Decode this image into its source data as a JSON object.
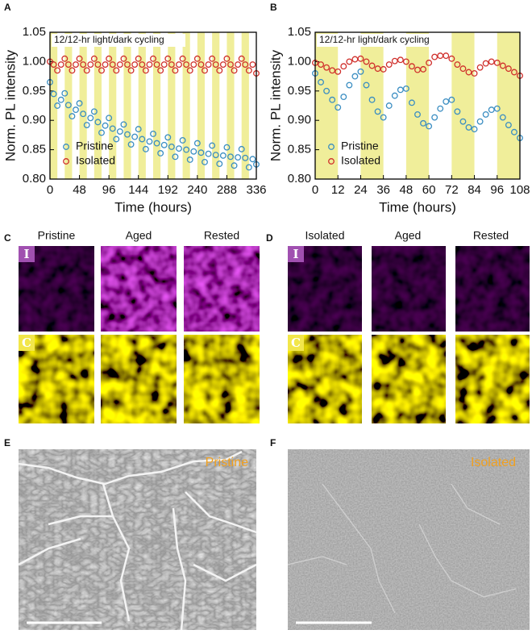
{
  "chart_data": [
    {
      "type": "scatter",
      "panel": "A",
      "title": "12/12-hr light/dark cycling",
      "xlabel": "Time (hours)",
      "ylabel": "Norm. PL intensity",
      "x": [
        0,
        6,
        12,
        18,
        24,
        30,
        36,
        42,
        48,
        54,
        60,
        66,
        72,
        78,
        84,
        90,
        96,
        102,
        108,
        114,
        120,
        126,
        132,
        138,
        144,
        150,
        156,
        162,
        168,
        174,
        180,
        186,
        192,
        198,
        204,
        210,
        216,
        222,
        228,
        234,
        240,
        246,
        252,
        258,
        264,
        270,
        276,
        282,
        288,
        294,
        300,
        306,
        312,
        318,
        324,
        330,
        336
      ],
      "series": [
        {
          "name": "Pristine",
          "color": "#3b8ec2",
          "values": [
            0.965,
            0.945,
            0.925,
            0.935,
            0.946,
            0.926,
            0.907,
            0.918,
            0.929,
            0.911,
            0.892,
            0.904,
            0.915,
            0.897,
            0.879,
            0.891,
            0.904,
            0.886,
            0.868,
            0.881,
            0.893,
            0.876,
            0.859,
            0.872,
            0.885,
            0.868,
            0.851,
            0.864,
            0.877,
            0.861,
            0.844,
            0.858,
            0.871,
            0.855,
            0.838,
            0.852,
            0.866,
            0.85,
            0.833,
            0.847,
            0.861,
            0.845,
            0.829,
            0.843,
            0.857,
            0.841,
            0.826,
            0.84,
            0.854,
            0.838,
            0.823,
            0.837,
            0.851,
            0.836,
            0.82,
            0.834,
            0.825
          ]
        },
        {
          "name": "Isolated",
          "color": "#d0302c",
          "values": [
            1.0,
            0.995,
            0.985,
            0.995,
            1.005,
            0.995,
            0.985,
            0.995,
            1.005,
            0.995,
            0.985,
            0.995,
            1.005,
            0.995,
            0.985,
            0.995,
            1.005,
            0.995,
            0.985,
            0.995,
            1.005,
            0.995,
            0.985,
            0.995,
            1.005,
            0.995,
            0.985,
            0.995,
            1.005,
            0.995,
            0.985,
            0.995,
            1.005,
            0.995,
            0.985,
            0.995,
            1.005,
            0.995,
            0.985,
            0.995,
            1.005,
            0.995,
            0.985,
            0.995,
            1.005,
            0.995,
            0.985,
            0.995,
            1.005,
            0.995,
            0.985,
            0.995,
            1.005,
            0.995,
            0.985,
            0.995,
            0.98
          ]
        }
      ],
      "light_periods": [
        [
          0,
          12
        ],
        [
          24,
          36
        ],
        [
          48,
          60
        ],
        [
          72,
          84
        ],
        [
          96,
          108
        ],
        [
          120,
          132
        ],
        [
          144,
          156
        ],
        [
          168,
          180
        ],
        [
          192,
          204
        ],
        [
          216,
          228
        ],
        [
          240,
          252
        ],
        [
          264,
          276
        ],
        [
          288,
          300
        ],
        [
          312,
          324
        ]
      ],
      "light_color": "#f0ee9a",
      "xlim": [
        0,
        336
      ],
      "xticks": [
        0,
        48,
        96,
        144,
        192,
        240,
        288,
        336
      ],
      "ylim": [
        0.8,
        1.05
      ],
      "yticks": [
        {
          "value": 0.8,
          "label": "0.80"
        },
        0.85,
        {
          "value": 0.9,
          "label": "0.90"
        },
        0.95,
        {
          "value": 1.0,
          "label": "1.00"
        },
        1.05
      ],
      "legend": "lower left"
    },
    {
      "type": "scatter",
      "panel": "B",
      "title": "12/12-hr light/dark cycling",
      "xlabel": "Time (hours)",
      "ylabel": "Norm. PL intensity",
      "x": [
        0,
        3,
        6,
        9,
        12,
        15,
        18,
        21,
        24,
        27,
        30,
        33,
        36,
        39,
        42,
        45,
        48,
        51,
        54,
        57,
        60,
        63,
        66,
        69,
        72,
        75,
        78,
        81,
        84,
        87,
        90,
        93,
        96,
        99,
        102,
        105,
        108
      ],
      "series": [
        {
          "name": "Pristine",
          "color": "#3b8ec2",
          "values": [
            0.98,
            0.965,
            0.95,
            0.935,
            0.922,
            0.94,
            0.96,
            0.975,
            0.983,
            0.96,
            0.935,
            0.915,
            0.905,
            0.925,
            0.942,
            0.952,
            0.954,
            0.93,
            0.91,
            0.895,
            0.89,
            0.905,
            0.92,
            0.932,
            0.935,
            0.915,
            0.898,
            0.888,
            0.885,
            0.898,
            0.91,
            0.918,
            0.92,
            0.905,
            0.892,
            0.88,
            0.87
          ]
        },
        {
          "name": "Isolated",
          "color": "#d0302c",
          "values": [
            0.998,
            0.995,
            0.99,
            0.985,
            0.983,
            0.992,
            1.0,
            1.004,
            1.005,
            1.0,
            0.993,
            0.988,
            0.987,
            0.995,
            1.001,
            1.003,
            1.0,
            0.992,
            0.986,
            0.987,
            0.998,
            1.008,
            1.01,
            1.01,
            1.005,
            0.995,
            0.988,
            0.982,
            0.98,
            0.99,
            0.997,
            1.0,
            0.998,
            0.993,
            0.988,
            0.982,
            0.976
          ]
        }
      ],
      "light_periods": [
        [
          0,
          12
        ],
        [
          24,
          36
        ],
        [
          48,
          60
        ],
        [
          72,
          84
        ],
        [
          96,
          108
        ]
      ],
      "light_color": "#f0ee9a",
      "xlim": [
        0,
        108
      ],
      "xticks": [
        0,
        12,
        24,
        36,
        48,
        60,
        72,
        84,
        96,
        108
      ],
      "ylim": [
        0.8,
        1.05
      ],
      "yticks": [
        {
          "value": 0.8,
          "label": "0.80"
        },
        0.85,
        {
          "value": 0.9,
          "label": "0.90"
        },
        0.95,
        {
          "value": 1.0,
          "label": "1.00"
        },
        1.05
      ],
      "legend": "lower left"
    }
  ],
  "maps": [
    {
      "panel": "C",
      "columns": [
        "Pristine",
        "Aged",
        "Rested"
      ],
      "rows": [
        "I",
        "C"
      ]
    },
    {
      "panel": "D",
      "columns": [
        "Isolated",
        "Aged",
        "Rested"
      ],
      "rows": [
        "I",
        "C"
      ]
    }
  ],
  "micrographs": [
    {
      "panel": "E",
      "label": "Pristine"
    },
    {
      "panel": "F",
      "label": "Isolated"
    }
  ]
}
